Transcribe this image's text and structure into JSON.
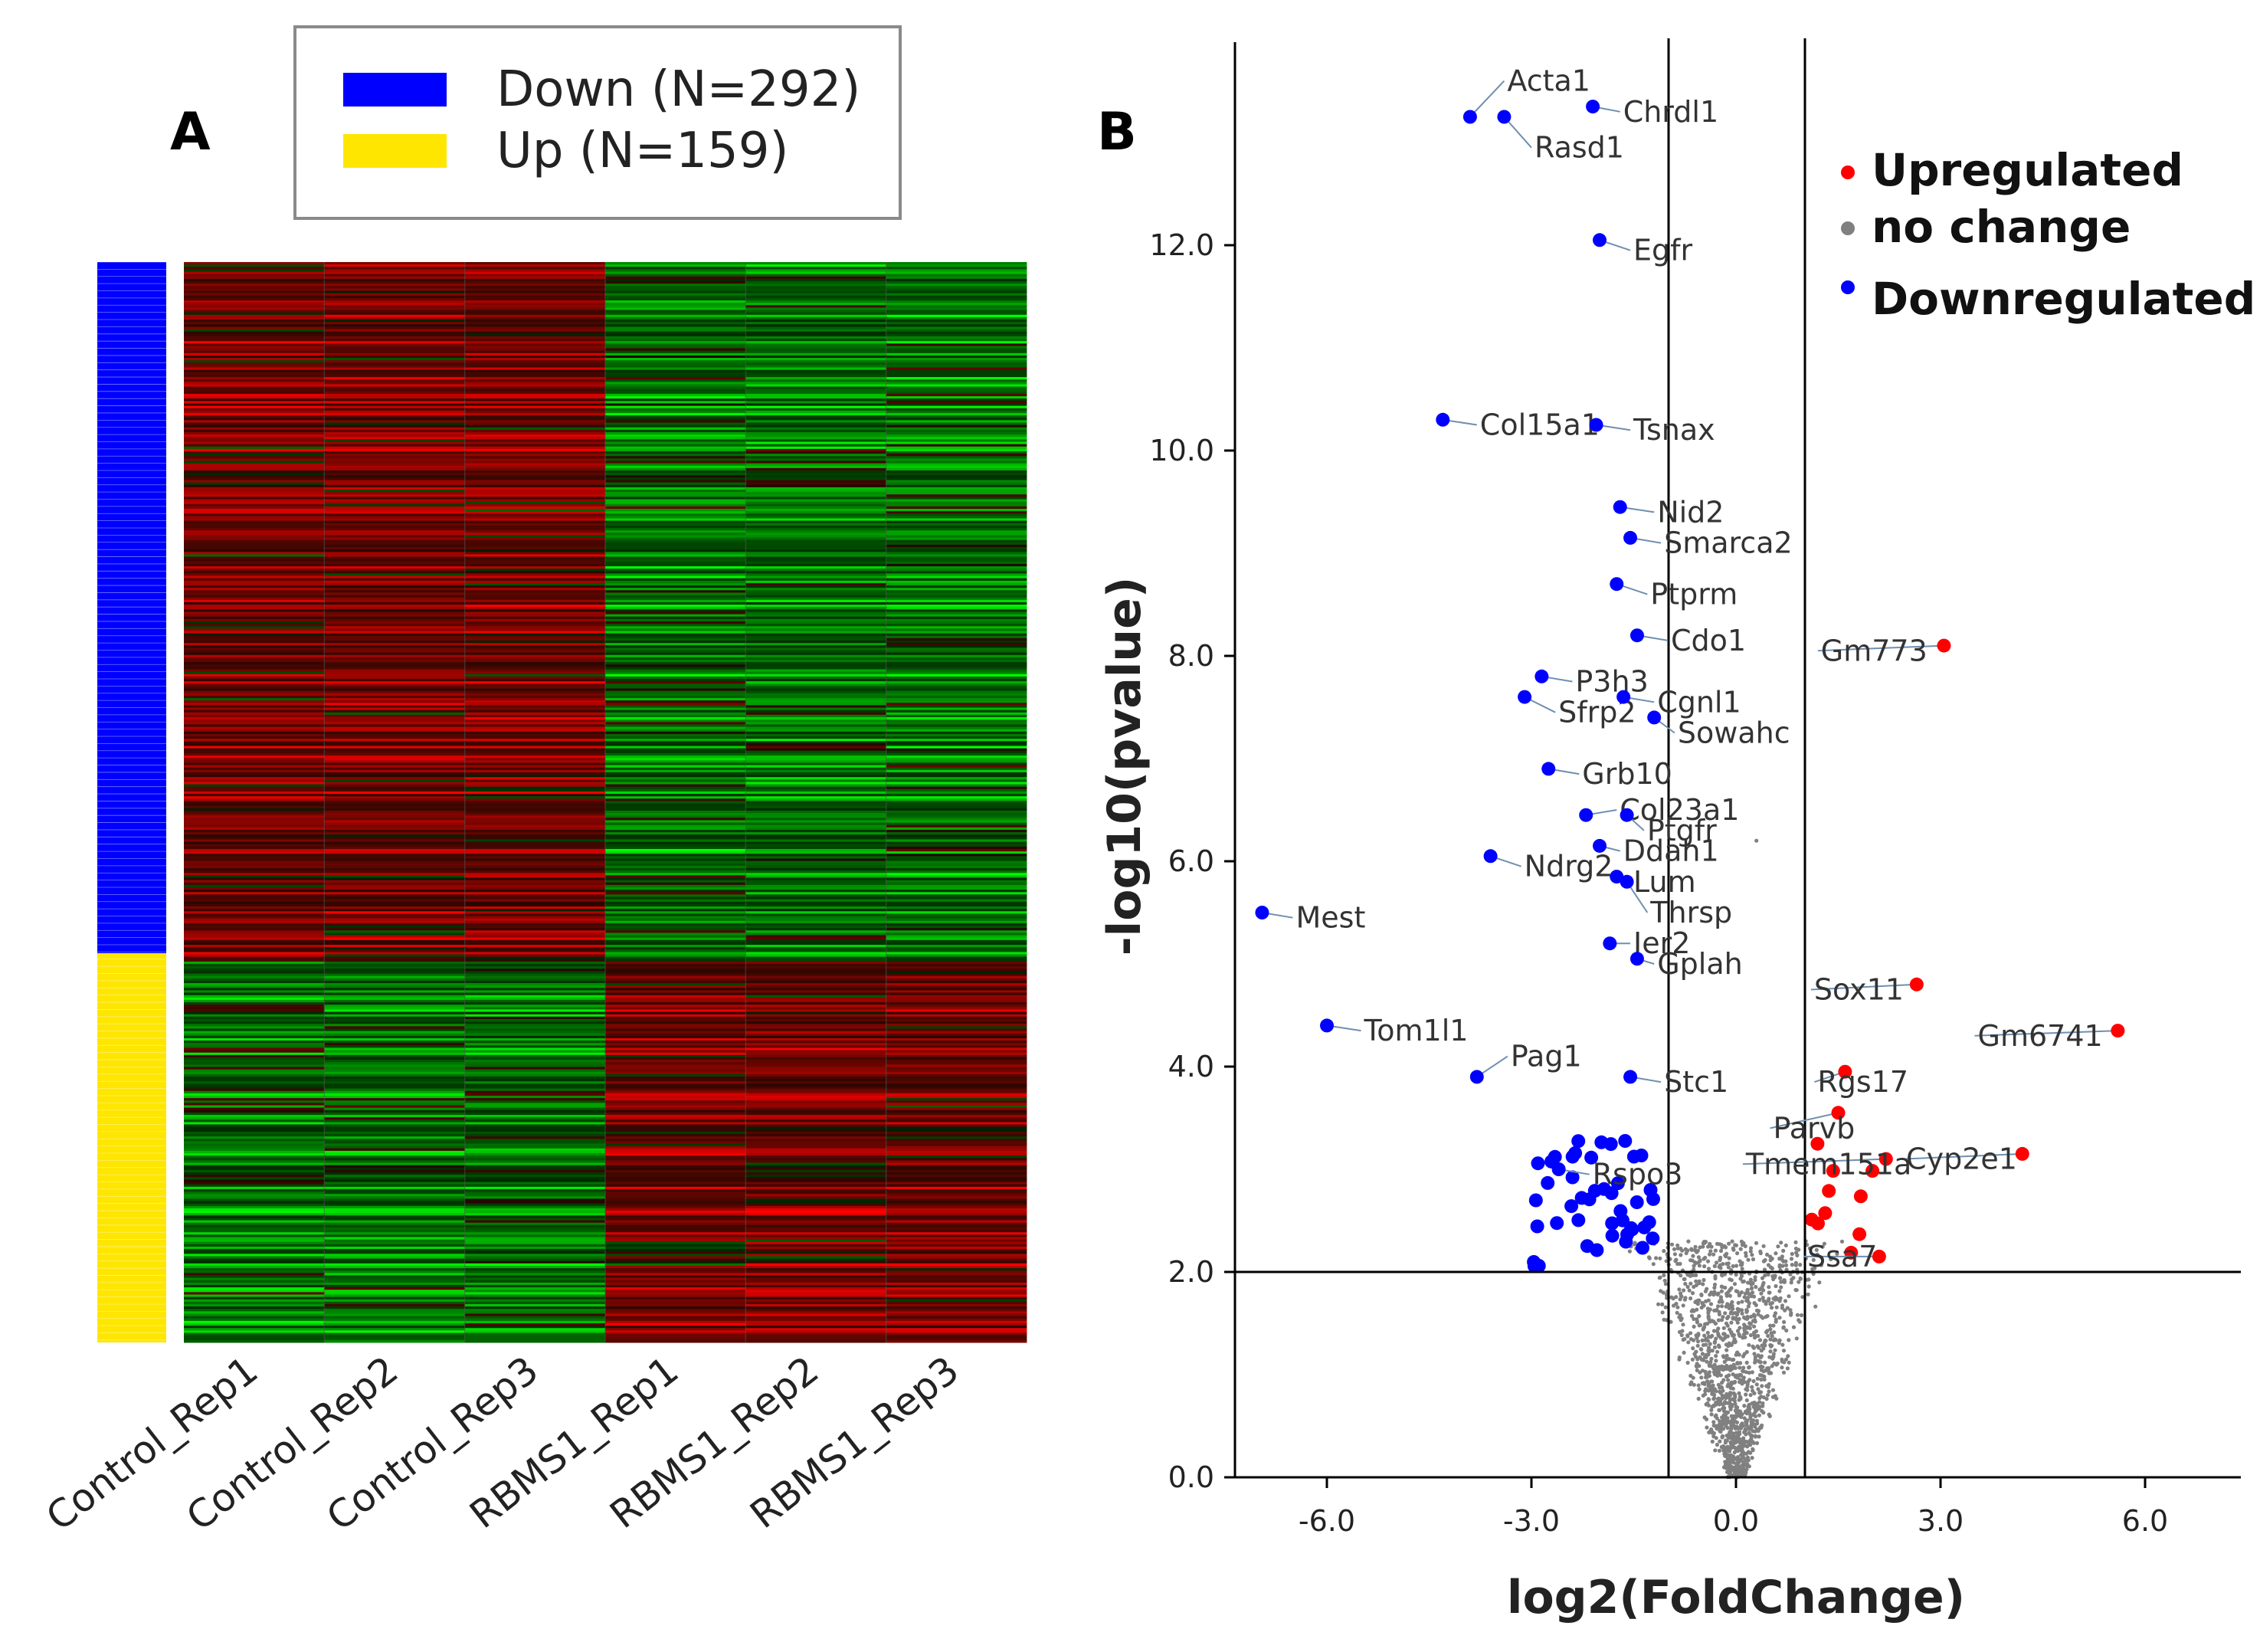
{
  "panel_a": {
    "label": "A",
    "legend": [
      {
        "label": "Down (N=292)",
        "color": "#0000ff"
      },
      {
        "label": "Up (N=159)",
        "color": "#ffe600"
      }
    ],
    "samples": [
      "Control_Rep1",
      "Control_Rep2",
      "Control_Rep3",
      "RBMS1_Rep1",
      "RBMS1_Rep2",
      "RBMS1_Rep3"
    ],
    "colors": {
      "high": "#ff0000",
      "low": "#00ff00",
      "mid": "#000000"
    }
  },
  "panel_b": {
    "label": "B",
    "legend": [
      {
        "label": "Upregulated",
        "color": "#ff0000"
      },
      {
        "label": "no change",
        "color": "#808080"
      },
      {
        "label": "Downregulated",
        "color": "#0000ff"
      }
    ]
  },
  "chart_data": [
    {
      "type": "heatmap",
      "title": "",
      "columns": [
        "Control_Rep1",
        "Control_Rep2",
        "Control_Rep3",
        "RBMS1_Rep1",
        "RBMS1_Rep2",
        "RBMS1_Rep3"
      ],
      "row_groups": [
        {
          "name": "Down (N=292)",
          "count": 292,
          "pattern": "high in Control, low in RBMS1"
        },
        {
          "name": "Up (N=159)",
          "count": 159,
          "pattern": "low in Control, high in RBMS1"
        }
      ],
      "color_scale": [
        "low (green)",
        "mid (black)",
        "high (red)"
      ]
    },
    {
      "type": "scatter",
      "title": "",
      "xlabel": "log2(FoldChange)",
      "ylabel": "-log10(pvalue)",
      "xlim": [
        -7.3,
        7.3
      ],
      "ylim": [
        0,
        14
      ],
      "xticks": [
        "-6.0",
        "-3.0",
        "0.0",
        "3.0",
        "6.0"
      ],
      "yticks": [
        "0.0",
        "2.0",
        "4.0",
        "6.0",
        "8.0",
        "10.0",
        "12.0"
      ],
      "threshold_lines": {
        "log2fc": [
          -1,
          1
        ],
        "neg_log10_p": 2
      },
      "series": [
        {
          "name": "Downregulated",
          "color": "#0000ff",
          "labeled_points": [
            {
              "label": "Acta1",
              "x": -3.9,
              "y": 13.25,
              "lx": -3.4,
              "ly": 13.6
            },
            {
              "label": "Chrdl1",
              "x": -2.1,
              "y": 13.35,
              "lx": -1.7,
              "ly": 13.3
            },
            {
              "label": "Rasd1",
              "x": -3.4,
              "y": 13.25,
              "lx": -3.0,
              "ly": 12.95
            },
            {
              "label": "Egfr",
              "x": -2.0,
              "y": 12.05,
              "lx": -1.55,
              "ly": 11.95
            },
            {
              "label": "Col15a1",
              "x": -4.3,
              "y": 10.3,
              "lx": -3.8,
              "ly": 10.25
            },
            {
              "label": "Tsnax",
              "x": -2.05,
              "y": 10.25,
              "lx": -1.55,
              "ly": 10.2
            },
            {
              "label": "Nid2",
              "x": -1.7,
              "y": 9.45,
              "lx": -1.2,
              "ly": 9.4
            },
            {
              "label": "Smarca2",
              "x": -1.55,
              "y": 9.15,
              "lx": -1.1,
              "ly": 9.1
            },
            {
              "label": "Ptprm",
              "x": -1.75,
              "y": 8.7,
              "lx": -1.3,
              "ly": 8.6
            },
            {
              "label": "Cdo1",
              "x": -1.45,
              "y": 8.2,
              "lx": -1.0,
              "ly": 8.15
            },
            {
              "label": "P3h3",
              "x": -2.85,
              "y": 7.8,
              "lx": -2.4,
              "ly": 7.75
            },
            {
              "label": "Sfrp2",
              "x": -3.1,
              "y": 7.6,
              "lx": -2.65,
              "ly": 7.45
            },
            {
              "label": "Cgnl1",
              "x": -1.65,
              "y": 7.6,
              "lx": -1.2,
              "ly": 7.55
            },
            {
              "label": "Sowahc",
              "x": -1.2,
              "y": 7.4,
              "lx": -0.9,
              "ly": 7.25
            },
            {
              "label": "Grb10",
              "x": -2.75,
              "y": 6.9,
              "lx": -2.3,
              "ly": 6.85
            },
            {
              "label": "Col23a1",
              "x": -2.2,
              "y": 6.45,
              "lx": -1.75,
              "ly": 6.5
            },
            {
              "label": "Ptgfr",
              "x": -1.6,
              "y": 6.45,
              "lx": -1.35,
              "ly": 6.3
            },
            {
              "label": "Ddah1",
              "x": -2.0,
              "y": 6.15,
              "lx": -1.7,
              "ly": 6.1
            },
            {
              "label": "Ndrg2",
              "x": -3.6,
              "y": 6.05,
              "lx": -3.15,
              "ly": 5.95
            },
            {
              "label": "Lum",
              "x": -1.75,
              "y": 5.85,
              "lx": -1.55,
              "ly": 5.8
            },
            {
              "label": "Thrsp",
              "x": -1.6,
              "y": 5.8,
              "lx": -1.3,
              "ly": 5.5
            },
            {
              "label": "Mest",
              "x": -6.95,
              "y": 5.5,
              "lx": -6.5,
              "ly": 5.45
            },
            {
              "label": "Ier2",
              "x": -1.85,
              "y": 5.2,
              "lx": -1.55,
              "ly": 5.2
            },
            {
              "label": "Gplah",
              "x": -1.45,
              "y": 5.05,
              "lx": -1.2,
              "ly": 5.0
            },
            {
              "label": "Tom1l1",
              "x": -6.0,
              "y": 4.4,
              "lx": -5.5,
              "ly": 4.35
            },
            {
              "label": "Pag1",
              "x": -3.8,
              "y": 3.9,
              "lx": -3.35,
              "ly": 4.1
            },
            {
              "label": "Stc1",
              "x": -1.55,
              "y": 3.9,
              "lx": -1.1,
              "ly": 3.85
            },
            {
              "label": "Rspo3",
              "x": -2.6,
              "y": 3.0,
              "lx": -2.15,
              "ly": 2.95
            }
          ]
        },
        {
          "name": "Upregulated",
          "color": "#ff0000",
          "labeled_points": [
            {
              "label": "Gm773",
              "x": 3.05,
              "y": 8.1,
              "lx": 1.2,
              "ly": 8.05
            },
            {
              "label": "Sox11",
              "x": 2.65,
              "y": 4.8,
              "lx": 1.1,
              "ly": 4.75
            },
            {
              "label": "Gm6741",
              "x": 5.6,
              "y": 4.35,
              "lx": 3.5,
              "ly": 4.3
            },
            {
              "label": "Rgs17",
              "x": 1.6,
              "y": 3.95,
              "lx": 1.15,
              "ly": 3.85
            },
            {
              "label": "Parvb",
              "x": 1.5,
              "y": 3.55,
              "lx": 0.5,
              "ly": 3.4
            },
            {
              "label": "Cyp2e1",
              "x": 4.2,
              "y": 3.15,
              "lx": 2.45,
              "ly": 3.1
            },
            {
              "label": "Tmem151a",
              "x": 2.2,
              "y": 3.1,
              "lx": 0.1,
              "ly": 3.05
            },
            {
              "label": "Ssa7",
              "x": 2.1,
              "y": 2.15,
              "lx": 1.0,
              "ly": 2.15
            }
          ]
        },
        {
          "name": "no change",
          "color": "#808080",
          "description": "volcano-shaped cloud of non-significant genes centred at log2FC 0"
        }
      ]
    }
  ]
}
